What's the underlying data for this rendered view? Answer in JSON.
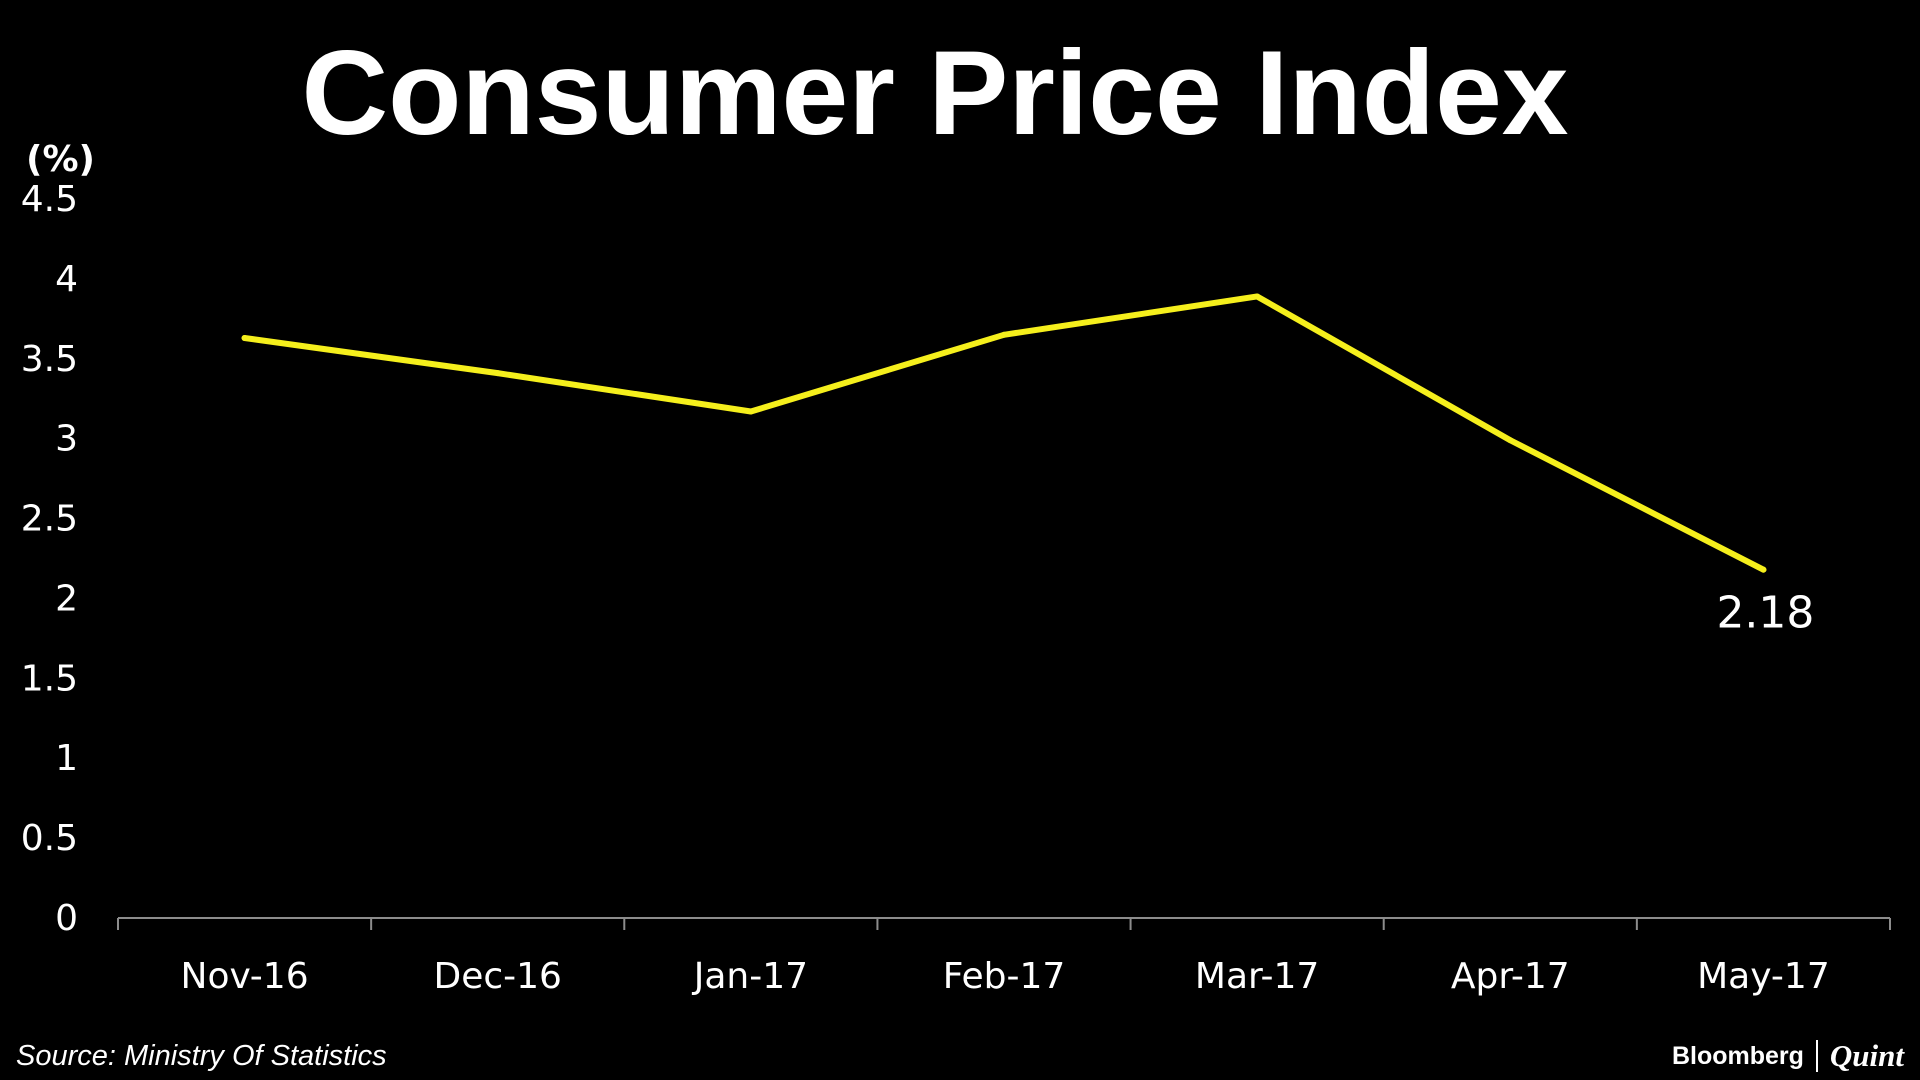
{
  "chart_data": {
    "type": "line",
    "title": "Consumer Price Index",
    "ylabel": "(%)",
    "xlabel": "",
    "categories": [
      "Nov-16",
      "Dec-16",
      "Jan-17",
      "Feb-17",
      "Mar-17",
      "Apr-17",
      "May-17"
    ],
    "series": [
      {
        "values": [
          3.63,
          3.41,
          3.17,
          3.65,
          3.89,
          2.99,
          2.18
        ],
        "color": "#f5ef1c"
      }
    ],
    "ylim": [
      0,
      4.5
    ],
    "yticks": [
      0,
      0.5,
      1,
      1.5,
      2,
      2.5,
      3,
      3.5,
      4,
      4.5
    ],
    "ytick_labels": [
      "0",
      "0.5",
      "1",
      "1.5",
      "2",
      "2.5",
      "3",
      "3.5",
      "4",
      "4.5"
    ],
    "grid": false,
    "legend": "none",
    "annotations": [
      {
        "category": "May-17",
        "value": 2.18,
        "label": "2.18"
      }
    ],
    "background": "#000000",
    "text_color": "#ffffff",
    "axis_color": "#8c8c8c"
  },
  "footer": {
    "source": "Source: Ministry Of Statistics",
    "brand_left": "Bloomberg",
    "brand_right": "Quint"
  }
}
